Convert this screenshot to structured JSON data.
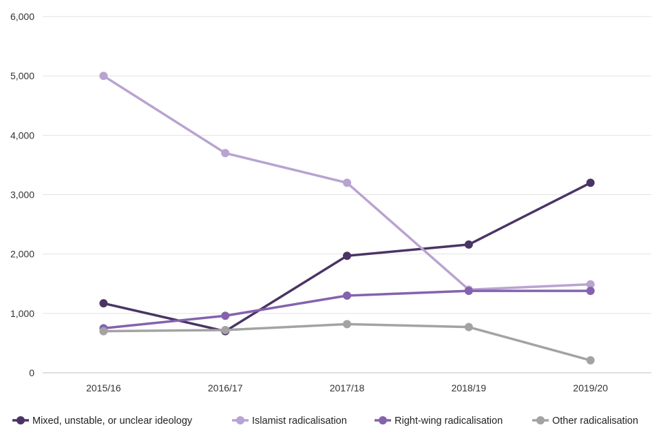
{
  "chart_data": {
    "type": "line",
    "title": "",
    "xlabel": "",
    "ylabel": "",
    "categories": [
      "2015/16",
      "2016/17",
      "2017/18",
      "2018/19",
      "2019/20"
    ],
    "ylim": [
      0,
      6000
    ],
    "yticks": [
      0,
      1000,
      2000,
      3000,
      4000,
      5000,
      6000
    ],
    "ytick_labels": [
      "0",
      "1,000",
      "2,000",
      "3,000",
      "4,000",
      "5,000",
      "6,000"
    ],
    "grid": true,
    "legend_position": "bottom",
    "series": [
      {
        "name": "Mixed, unstable, or unclear ideology",
        "color": "#4a3466",
        "values": [
          1170,
          700,
          1970,
          2160,
          3200
        ]
      },
      {
        "name": "Islamist radicalisation",
        "color": "#b8a3d1",
        "values": [
          5000,
          3700,
          3200,
          1400,
          1490
        ]
      },
      {
        "name": "Right-wing radicalisation",
        "color": "#8462ad",
        "values": [
          750,
          960,
          1300,
          1380,
          1380
        ]
      },
      {
        "name": "Other radicalisation",
        "color": "#a3a3a3",
        "values": [
          700,
          720,
          820,
          770,
          210
        ]
      }
    ]
  }
}
